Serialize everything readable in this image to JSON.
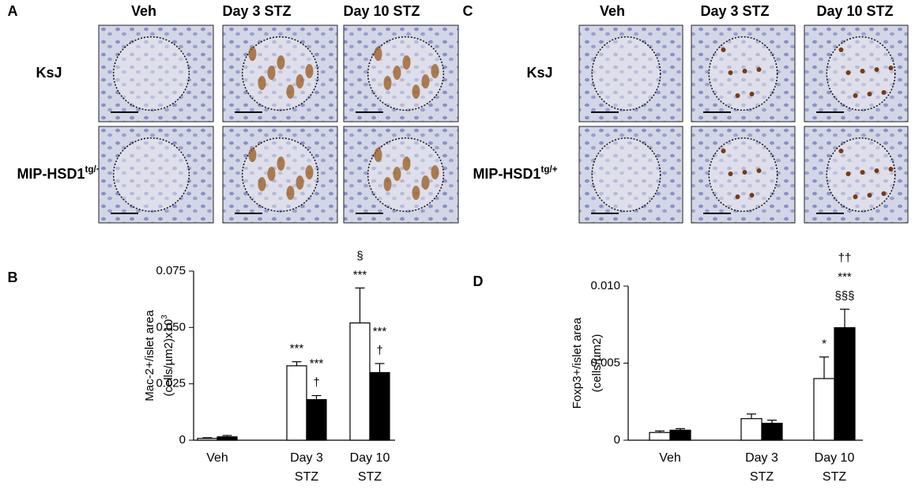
{
  "panels": {
    "A": {
      "letter": "A",
      "columns": [
        "Veh",
        "Day 3 STZ",
        "Day 10 STZ"
      ],
      "rows": [
        {
          "text": "KsJ"
        },
        {
          "text": "MIP-HSD1",
          "sup": "tg/+"
        }
      ]
    },
    "C": {
      "letter": "C",
      "columns": [
        "Veh",
        "Day 3 STZ",
        "Day 10 STZ"
      ],
      "rows": [
        {
          "text": "KsJ"
        },
        {
          "text": "MIP-HSD1",
          "sup": "tg/+"
        }
      ]
    }
  },
  "chart_data": [
    {
      "type": "bar",
      "panel": "B",
      "y_label": [
        {
          "text": "Mac-2+/islet area"
        },
        {
          "text": "(cells/µm2)x10",
          "sup": "3"
        }
      ],
      "categories": [
        [
          "Veh"
        ],
        [
          "Day 3",
          "STZ"
        ],
        [
          "Day 10",
          "STZ"
        ]
      ],
      "ylim": [
        0,
        0.075
      ],
      "yticks": [
        0,
        0.025,
        {
          "value": 0.05,
          "label": "0.050"
        },
        0.075
      ],
      "series": [
        {
          "color": "#ffffff",
          "values": [
            0.0008,
            0.033,
            0.052
          ],
          "errors": [
            0.0003,
            0.0018,
            0.0155
          ],
          "annotations": [
            null,
            [
              "***"
            ],
            [
              "§",
              "***"
            ]
          ]
        },
        {
          "color": "#000000",
          "values": [
            0.0015,
            0.018,
            0.03
          ],
          "errors": [
            0.0006,
            0.0018,
            0.004
          ],
          "annotations": [
            null,
            [
              "***",
              "†"
            ],
            [
              "***",
              "†"
            ]
          ]
        }
      ]
    },
    {
      "type": "bar",
      "panel": "D",
      "y_label": [
        {
          "text": "Foxp3+/islet area"
        },
        {
          "text": "(cells/µm2)"
        }
      ],
      "categories": [
        [
          "Veh"
        ],
        [
          "Day 3",
          "STZ"
        ],
        [
          "Day 10",
          "STZ"
        ]
      ],
      "ylim": [
        0,
        0.01
      ],
      "yticks": [
        0,
        0.005,
        {
          "value": 0.01,
          "label": "0.010"
        }
      ],
      "series": [
        {
          "color": "#ffffff",
          "values": [
            0.0005,
            0.0014,
            0.004
          ],
          "errors": [
            0.0001,
            0.0003,
            0.0014
          ],
          "annotations": [
            null,
            null,
            [
              "*"
            ]
          ]
        },
        {
          "color": "#000000",
          "values": [
            0.00065,
            0.0011,
            0.0073
          ],
          "errors": [
            0.0001,
            0.0002,
            0.0012
          ],
          "annotations": [
            null,
            null,
            [
              "††",
              "***",
              "§§§"
            ]
          ]
        }
      ]
    }
  ]
}
